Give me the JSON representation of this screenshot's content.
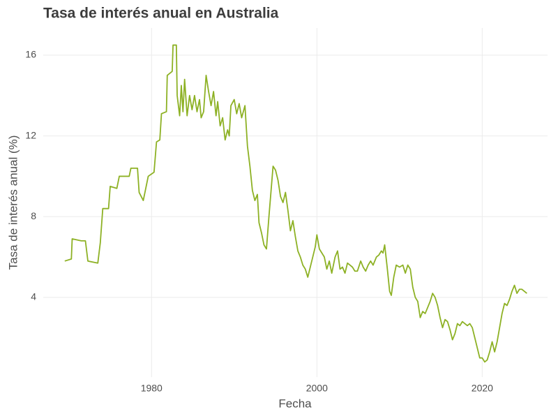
{
  "chart_data": {
    "type": "line",
    "title": "Tasa de interés anual en Australia",
    "xlabel": "Fecha",
    "ylabel": "Tasa de interés anual (%)",
    "x": [
      1969.5,
      1970.3,
      1970.4,
      1971.5,
      1972.0,
      1972.3,
      1973.5,
      1973.8,
      1974.1,
      1974.8,
      1975.0,
      1975.8,
      1976.1,
      1977.3,
      1977.5,
      1978.3,
      1978.5,
      1979.0,
      1979.3,
      1979.6,
      1980.3,
      1980.6,
      1981.0,
      1981.2,
      1981.8,
      1981.9,
      1982.5,
      1982.6,
      1983.0,
      1983.1,
      1983.4,
      1983.6,
      1983.8,
      1984.0,
      1984.3,
      1984.6,
      1984.9,
      1985.2,
      1985.5,
      1985.8,
      1986.0,
      1986.3,
      1986.6,
      1986.9,
      1987.2,
      1987.5,
      1987.8,
      1988.0,
      1988.3,
      1988.6,
      1988.9,
      1989.2,
      1989.4,
      1989.6,
      1990.0,
      1990.3,
      1990.6,
      1990.9,
      1991.3,
      1991.6,
      1991.9,
      1992.2,
      1992.5,
      1992.8,
      1993.0,
      1993.3,
      1993.6,
      1993.9,
      1994.2,
      1994.5,
      1994.7,
      1995.0,
      1995.3,
      1995.6,
      1995.9,
      1996.2,
      1996.5,
      1996.8,
      1997.1,
      1997.4,
      1997.7,
      1998.0,
      1998.3,
      1998.6,
      1998.9,
      1999.2,
      1999.5,
      1999.8,
      2000.0,
      2000.3,
      2000.6,
      2000.9,
      2001.2,
      2001.5,
      2001.8,
      2002.2,
      2002.5,
      2002.8,
      2003.1,
      2003.4,
      2003.7,
      2004.0,
      2004.3,
      2004.6,
      2004.9,
      2005.3,
      2005.6,
      2005.9,
      2006.2,
      2006.5,
      2006.8,
      2007.2,
      2007.5,
      2007.8,
      2008.0,
      2008.2,
      2008.5,
      2008.8,
      2009.0,
      2009.3,
      2009.6,
      2010.0,
      2010.4,
      2010.7,
      2011.0,
      2011.3,
      2011.6,
      2011.9,
      2012.2,
      2012.5,
      2012.8,
      2013.1,
      2013.4,
      2013.7,
      2014.0,
      2014.3,
      2014.6,
      2014.9,
      2015.2,
      2015.5,
      2015.8,
      2016.1,
      2016.4,
      2016.7,
      2017.0,
      2017.3,
      2017.6,
      2017.9,
      2018.2,
      2018.5,
      2018.8,
      2019.1,
      2019.4,
      2019.7,
      2020.0,
      2020.3,
      2020.6,
      2020.9,
      2021.2,
      2021.5,
      2021.8,
      2022.1,
      2022.4,
      2022.7,
      2023.0,
      2023.3,
      2023.6,
      2023.9,
      2024.2,
      2024.5,
      2024.8,
      2025.1,
      2025.4
    ],
    "values": [
      5.8,
      5.9,
      6.9,
      6.8,
      6.8,
      5.8,
      5.7,
      6.7,
      8.4,
      8.4,
      9.5,
      9.4,
      10.0,
      10.0,
      10.4,
      10.4,
      9.2,
      8.8,
      9.4,
      10.0,
      10.2,
      11.7,
      11.8,
      13.1,
      13.2,
      15.0,
      15.2,
      16.5,
      16.5,
      14.0,
      13.0,
      14.5,
      13.2,
      14.8,
      13.0,
      14.0,
      13.3,
      14.0,
      13.2,
      13.8,
      12.9,
      13.2,
      15.0,
      14.2,
      13.5,
      14.2,
      13.0,
      13.7,
      12.5,
      12.9,
      11.8,
      12.3,
      12.0,
      13.5,
      13.8,
      13.1,
      13.6,
      12.9,
      13.5,
      11.5,
      10.5,
      9.3,
      8.8,
      9.1,
      7.7,
      7.2,
      6.6,
      6.4,
      8.0,
      9.5,
      10.5,
      10.3,
      9.8,
      9.0,
      8.7,
      9.2,
      8.3,
      7.3,
      7.8,
      7.0,
      6.3,
      6.0,
      5.6,
      5.4,
      5.0,
      5.5,
      6.0,
      6.5,
      7.1,
      6.4,
      6.2,
      6.0,
      5.4,
      5.8,
      5.2,
      6.0,
      6.3,
      5.4,
      5.5,
      5.2,
      5.7,
      5.6,
      5.5,
      5.3,
      5.3,
      5.8,
      5.5,
      5.3,
      5.6,
      5.8,
      5.6,
      6.0,
      6.1,
      6.3,
      6.2,
      6.6,
      5.5,
      4.3,
      4.1,
      5.0,
      5.6,
      5.5,
      5.6,
      5.2,
      5.6,
      5.4,
      4.5,
      4.0,
      3.8,
      3.0,
      3.3,
      3.2,
      3.5,
      3.8,
      4.2,
      4.0,
      3.6,
      3.0,
      2.5,
      2.9,
      2.8,
      2.4,
      1.9,
      2.2,
      2.7,
      2.6,
      2.8,
      2.7,
      2.6,
      2.7,
      2.5,
      2.0,
      1.5,
      1.0,
      1.0,
      0.8,
      0.9,
      1.3,
      1.8,
      1.3,
      1.8,
      2.5,
      3.2,
      3.7,
      3.6,
      3.9,
      4.3,
      4.6,
      4.2,
      4.4,
      4.4,
      4.3,
      4.2
    ],
    "color": "#8db124",
    "xlim": [
      1966.9,
      2027.9
    ],
    "xticks": [
      1980,
      2000,
      2020
    ],
    "ylim": [
      0.05,
      17.35
    ],
    "yticks": [
      4,
      8,
      12,
      16
    ],
    "grid": true
  }
}
